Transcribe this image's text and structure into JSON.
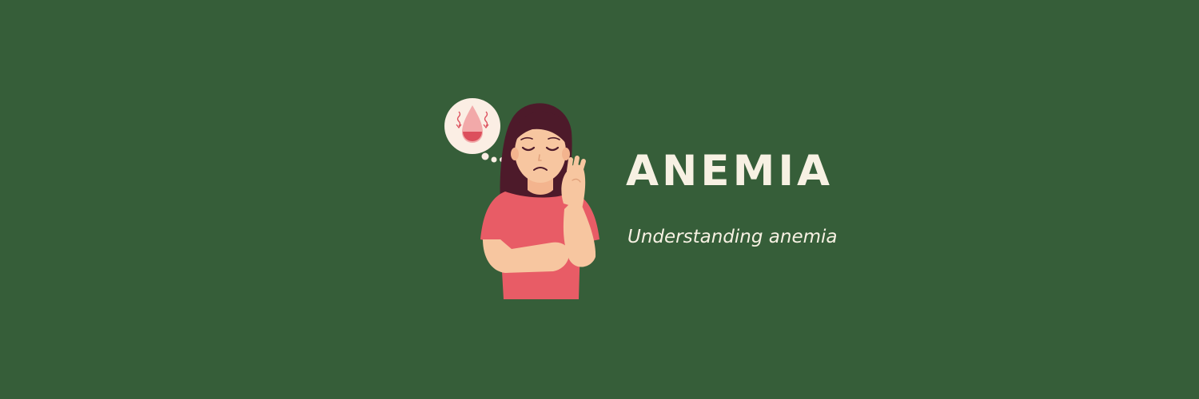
{
  "banner": {
    "title": "ANEMIA",
    "subtitle": "Understanding anemia",
    "illustration_icons": [
      "woman-fatigued-icon",
      "thought-bubble-icon",
      "blood-drop-icon"
    ]
  },
  "colors": {
    "background": "#365e39",
    "text": "#f7f1e3",
    "shirt": "#e85c66",
    "hair": "#4d1a2a",
    "skin": "#f7c6a0",
    "blood": "#dc4f5c",
    "bubble": "#fbeee4"
  }
}
